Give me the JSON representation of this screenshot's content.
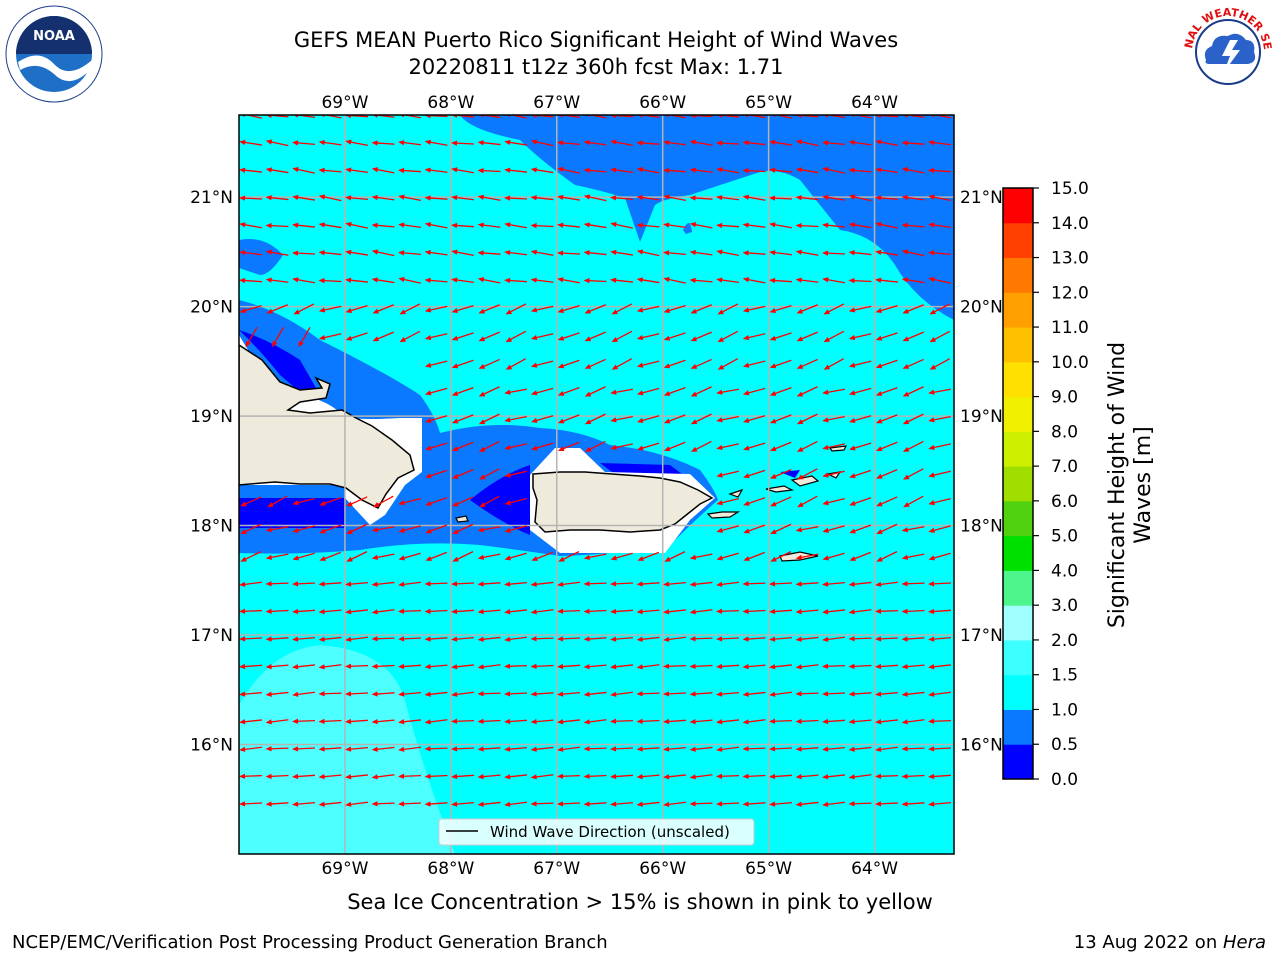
{
  "header": {
    "title_line1": "GEFS MEAN Puerto Rico Significant Height of Wind Waves",
    "title_line2": "20220811 t12z 360h fcst   Max: 1.71"
  },
  "logos": {
    "left": {
      "name": "noaa-logo",
      "text": "NOAA"
    },
    "right": {
      "name": "nws-logo",
      "text": "NATIONAL WEATHER SERVICE"
    }
  },
  "footer": {
    "note": "Sea Ice Concentration > 15% is shown in pink to yellow",
    "left": "NCEP/EMC/Verification Post Processing Product Generation Branch",
    "right_prefix": "13 Aug 2022 on ",
    "right_machine": "Hera"
  },
  "chart_data": {
    "type": "heatmap",
    "title": "GEFS MEAN Puerto Rico Significant Height of Wind Waves",
    "subtitle": "20220811 t12z 360h fcst   Max: 1.71",
    "lon_range": [
      -70,
      -63.25
    ],
    "lat_range": [
      15,
      21.75
    ],
    "x_ticks": [
      "69°W",
      "68°W",
      "67°W",
      "66°W",
      "65°W",
      "64°W"
    ],
    "x_tick_values": [
      -69,
      -68,
      -67,
      -66,
      -65,
      -64
    ],
    "y_ticks": [
      "21°N",
      "20°N",
      "19°N",
      "18°N",
      "17°N",
      "16°N"
    ],
    "y_tick_values": [
      21,
      20,
      19,
      18,
      17,
      16
    ],
    "grid": true,
    "legend": {
      "label": "Wind Wave Direction (unscaled)",
      "placement": "bottom-center"
    },
    "colorbar": {
      "label": "Significant Height of Wind Waves [m]",
      "levels": [
        0.0,
        0.5,
        1.0,
        1.5,
        2.0,
        3.0,
        4.0,
        5.0,
        6.0,
        7.0,
        8.0,
        9.0,
        10.0,
        11.0,
        12.0,
        13.0,
        14.0,
        15.0
      ],
      "tick_labels": [
        "0.0",
        "0.5",
        "1.0",
        "1.5",
        "2.0",
        "3.0",
        "4.0",
        "5.0",
        "6.0",
        "7.0",
        "8.0",
        "9.0",
        "10.0",
        "11.0",
        "12.0",
        "13.0",
        "14.0",
        "15.0"
      ],
      "colors": [
        "#0000ff",
        "#0a78ff",
        "#00ffff",
        "#3cffff",
        "#a0ffff",
        "#4ef48c",
        "#00e000",
        "#50d210",
        "#a0de00",
        "#cdf000",
        "#f0f000",
        "#ffe000",
        "#ffc000",
        "#ffa000",
        "#ff7800",
        "#ff4000",
        "#ff0000"
      ]
    },
    "wave_height_max": 1.71,
    "arrow_color": "#ff0000",
    "dominant_direction": "westward (towards W / WSW)"
  }
}
